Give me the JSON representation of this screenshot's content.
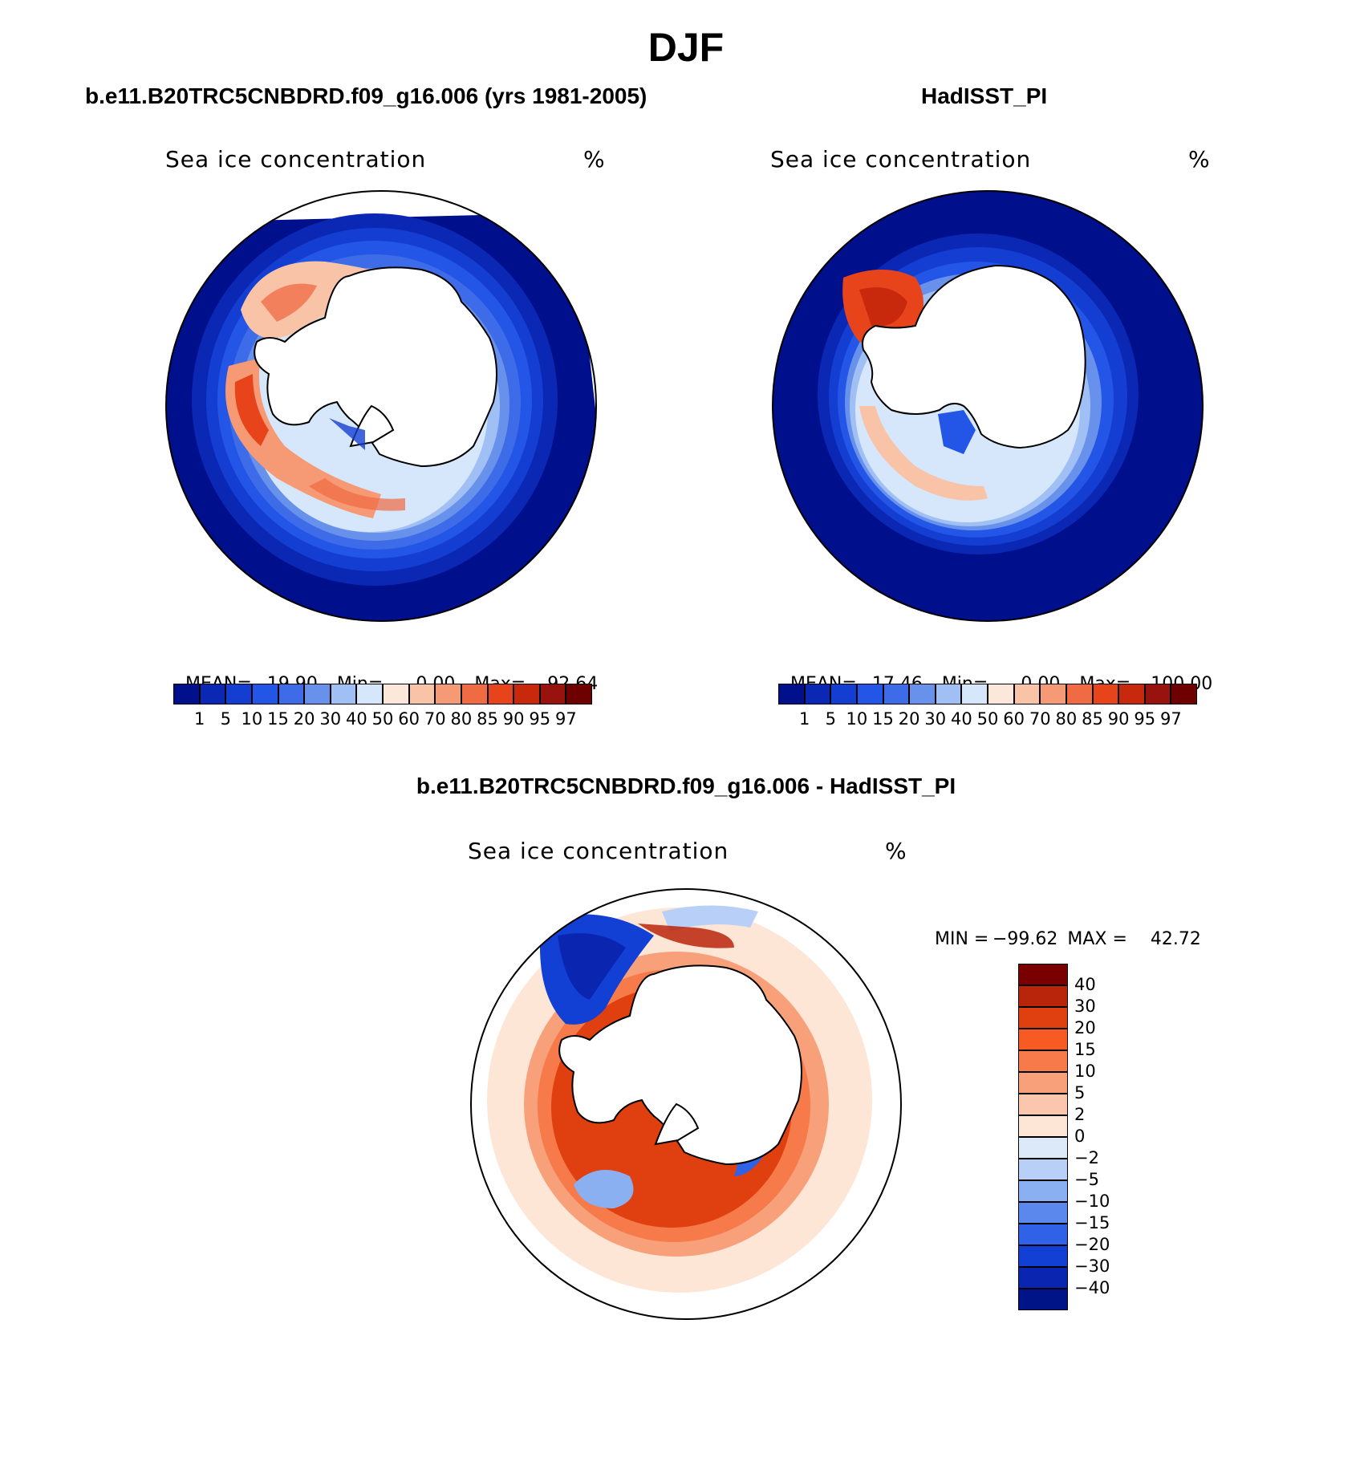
{
  "figure": {
    "season": "DJF"
  },
  "panels": [
    {
      "id": "model",
      "title": "b.e11.B20TRC5CNBDRD.f09_g16.006 (yrs 1981-2005)",
      "label_left": "Sea ice concentration",
      "label_right": "%",
      "stats": {
        "mean_label": "MEAN=",
        "mean": "19.90",
        "min_label": "Min=",
        "min": "0.00",
        "max_label": "Max=",
        "max": "92.64"
      }
    },
    {
      "id": "obs",
      "title": "HadISST_PI",
      "label_left": "Sea ice concentration",
      "label_right": "%",
      "stats": {
        "mean_label": "MEAN=",
        "mean": "17.46",
        "min_label": "Min=",
        "min": "0.00",
        "max_label": "Max=",
        "max": "100.00"
      }
    },
    {
      "id": "diff",
      "title": "b.e11.B20TRC5CNBDRD.f09_g16.006 - HadISST_PI",
      "label_left": "Sea ice concentration",
      "label_right": "%",
      "stats": {
        "min_label": "MIN =",
        "min": "−99.62",
        "max_label": "MAX =",
        "max": "42.72"
      }
    }
  ],
  "colorbars": {
    "concentration": {
      "levels": [
        "1",
        "5",
        "10",
        "15",
        "20",
        "30",
        "40",
        "50",
        "60",
        "70",
        "80",
        "85",
        "90",
        "95",
        "97"
      ],
      "colors": [
        "#000f8c",
        "#0a28b4",
        "#143ed2",
        "#2355e6",
        "#3e6ce8",
        "#6891ec",
        "#a0bff4",
        "#d6e7fb",
        "#fce8da",
        "#f9c3a8",
        "#f59a74",
        "#f06a43",
        "#e8441c",
        "#c8280c",
        "#98120e",
        "#6e0000"
      ]
    },
    "difference": {
      "levels": [
        "40",
        "30",
        "20",
        "15",
        "10",
        "5",
        "2",
        "0",
        "−2",
        "−5",
        "−10",
        "−15",
        "−20",
        "−30",
        "−40"
      ],
      "colors": [
        "#7a0000",
        "#b8250a",
        "#e0400f",
        "#f75a23",
        "#f77a4a",
        "#f8a07a",
        "#fbc6ae",
        "#fde6d6",
        "#dbe9f9",
        "#b8d0f7",
        "#8ab0f2",
        "#5a88ec",
        "#2f62e6",
        "#1240d4",
        "#0a26b0",
        "#001488"
      ]
    }
  }
}
